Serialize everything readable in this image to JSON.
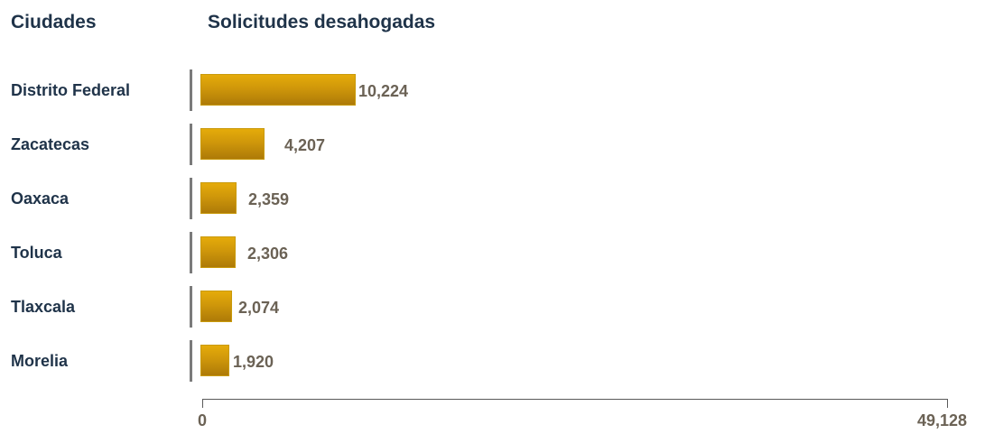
{
  "headers": {
    "city_column": "Ciudades",
    "value_column": "Solicitudes desahogadas"
  },
  "colors": {
    "bar": "#d19a0b",
    "label_text": "#1f3349",
    "value_text": "#6b6255"
  },
  "chart_data": {
    "type": "bar",
    "orientation": "horizontal",
    "categories": [
      "Distrito Federal",
      "Zacatecas",
      "Oaxaca",
      "Toluca",
      "Tlaxcala",
      "Morelia"
    ],
    "values": [
      10224,
      4207,
      2359,
      2306,
      2074,
      1920
    ],
    "value_labels": [
      "10,224",
      "4,207",
      "2,359",
      "2,306",
      "2,074",
      "1,920"
    ],
    "xlim": [
      0,
      49128
    ],
    "x_tick_labels": [
      "0",
      "49,128"
    ],
    "grid": false
  }
}
